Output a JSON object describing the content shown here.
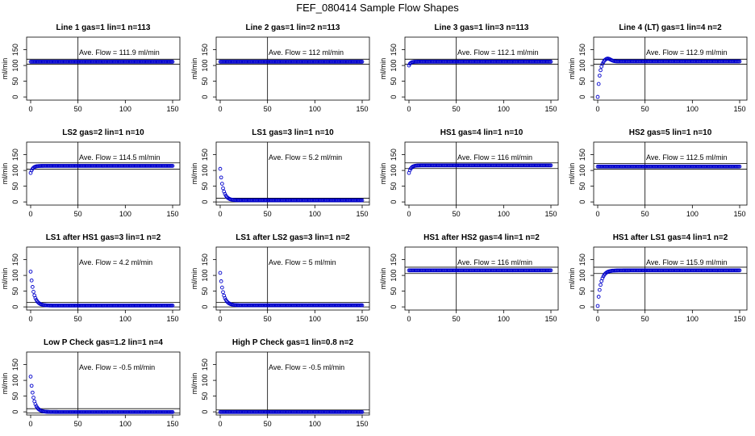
{
  "title": "FEF_080414  Sample Flow Shapes",
  "colors": {
    "points": "#0000cc",
    "lines": "#000000"
  },
  "chart_data": [
    {
      "type": "scatter",
      "title": "Line 1 gas=1 lin=1 n=113",
      "annotation": "Ave. Flow =  111.9  ml/min",
      "ylabel": "ml/min",
      "xlim": [
        0,
        150
      ],
      "ylim": [
        -10,
        190
      ],
      "x_ticks": [
        0,
        50,
        100,
        150
      ],
      "y_ticks": [
        0,
        50,
        100,
        150
      ],
      "vline": 50,
      "hlines": [
        104,
        120
      ],
      "shape": {
        "kind": "flat",
        "level": 111.9
      }
    },
    {
      "type": "scatter",
      "title": "Line 2 gas=1 lin=2 n=113",
      "annotation": "Ave. Flow =  112  ml/min",
      "ylabel": "ml/min",
      "xlim": [
        0,
        150
      ],
      "ylim": [
        -10,
        190
      ],
      "x_ticks": [
        0,
        50,
        100,
        150
      ],
      "y_ticks": [
        0,
        50,
        100,
        150
      ],
      "vline": 50,
      "hlines": [
        104,
        120
      ],
      "shape": {
        "kind": "flat",
        "level": 112
      }
    },
    {
      "type": "scatter",
      "title": "Line 3 gas=1 lin=3 n=113",
      "annotation": "Ave. Flow =  112.1  ml/min",
      "ylabel": "ml/min",
      "xlim": [
        0,
        150
      ],
      "ylim": [
        -10,
        190
      ],
      "x_ticks": [
        0,
        50,
        100,
        150
      ],
      "y_ticks": [
        0,
        50,
        100,
        150
      ],
      "vline": 50,
      "hlines": [
        104,
        120
      ],
      "shape": {
        "kind": "rise",
        "start": 100,
        "level": 112.1,
        "k": 0.6
      }
    },
    {
      "type": "scatter",
      "title": "Line 4 (LT) gas=1 lin=4 n=2",
      "annotation": "Ave. Flow =  112.9  ml/min",
      "ylabel": "ml/min",
      "xlim": [
        0,
        150
      ],
      "ylim": [
        -10,
        190
      ],
      "x_ticks": [
        0,
        50,
        100,
        150
      ],
      "y_ticks": [
        0,
        50,
        100,
        150
      ],
      "vline": 50,
      "hlines": [
        104,
        120
      ],
      "shape": {
        "kind": "overshoot",
        "level": 112.9,
        "k": 0.45
      }
    },
    {
      "type": "scatter",
      "title": "LS2 gas=2 lin=1 n=10",
      "annotation": "Ave. Flow =  114.5  ml/min",
      "ylabel": "ml/min",
      "xlim": [
        0,
        150
      ],
      "ylim": [
        -10,
        190
      ],
      "x_ticks": [
        0,
        50,
        100,
        150
      ],
      "y_ticks": [
        0,
        50,
        100,
        150
      ],
      "vline": 50,
      "hlines": [
        104,
        124
      ],
      "shape": {
        "kind": "rise",
        "start": 92,
        "level": 114.5,
        "k": 0.45
      }
    },
    {
      "type": "scatter",
      "title": "LS1 gas=3 lin=1 n=10",
      "annotation": "Ave. Flow =  5.2  ml/min",
      "ylabel": "ml/min",
      "xlim": [
        0,
        150
      ],
      "ylim": [
        -10,
        190
      ],
      "x_ticks": [
        0,
        50,
        100,
        150
      ],
      "y_ticks": [
        0,
        50,
        100,
        150
      ],
      "vline": 50,
      "hlines": [
        0,
        12
      ],
      "shape": {
        "kind": "decay",
        "start": 105,
        "level": 5.2,
        "k": 0.32
      }
    },
    {
      "type": "scatter",
      "title": "HS1 gas=4 lin=1 n=10",
      "annotation": "Ave. Flow =  116  ml/min",
      "ylabel": "ml/min",
      "xlim": [
        0,
        150
      ],
      "ylim": [
        -10,
        190
      ],
      "x_ticks": [
        0,
        50,
        100,
        150
      ],
      "y_ticks": [
        0,
        50,
        100,
        150
      ],
      "vline": 50,
      "hlines": [
        106,
        124
      ],
      "shape": {
        "kind": "rise",
        "start": 92,
        "level": 116,
        "k": 0.45
      }
    },
    {
      "type": "scatter",
      "title": "HS2 gas=5 lin=1 n=10",
      "annotation": "Ave. Flow =  112.5  ml/min",
      "ylabel": "ml/min",
      "xlim": [
        0,
        150
      ],
      "ylim": [
        -10,
        190
      ],
      "x_ticks": [
        0,
        50,
        100,
        150
      ],
      "y_ticks": [
        0,
        50,
        100,
        150
      ],
      "vline": 50,
      "hlines": [
        104,
        122
      ],
      "shape": {
        "kind": "flat",
        "level": 112.5
      }
    },
    {
      "type": "scatter",
      "title": "LS1 after HS1 gas=3 lin=1 n=2",
      "annotation": "Ave. Flow =  4.2  ml/min",
      "ylabel": "ml/min",
      "xlim": [
        0,
        150
      ],
      "ylim": [
        -10,
        190
      ],
      "x_ticks": [
        0,
        50,
        100,
        150
      ],
      "y_ticks": [
        0,
        50,
        100,
        150
      ],
      "vline": 50,
      "hlines": [
        0,
        14
      ],
      "shape": {
        "kind": "decay",
        "start": 112,
        "level": 4.2,
        "k": 0.3
      }
    },
    {
      "type": "scatter",
      "title": "LS1 after LS2 gas=3 lin=1 n=2",
      "annotation": "Ave. Flow =  5  ml/min",
      "ylabel": "ml/min",
      "xlim": [
        0,
        150
      ],
      "ylim": [
        -10,
        190
      ],
      "x_ticks": [
        0,
        50,
        100,
        150
      ],
      "y_ticks": [
        0,
        50,
        100,
        150
      ],
      "vline": 50,
      "hlines": [
        0,
        14
      ],
      "shape": {
        "kind": "decay",
        "start": 108,
        "level": 5,
        "k": 0.3
      }
    },
    {
      "type": "scatter",
      "title": "HS1 after HS2 gas=4 lin=1 n=2",
      "annotation": "Ave. Flow =  116  ml/min",
      "ylabel": "ml/min",
      "xlim": [
        0,
        150
      ],
      "ylim": [
        -10,
        190
      ],
      "x_ticks": [
        0,
        50,
        100,
        150
      ],
      "y_ticks": [
        0,
        50,
        100,
        150
      ],
      "vline": 50,
      "hlines": [
        106,
        126
      ],
      "shape": {
        "kind": "flat",
        "level": 116
      }
    },
    {
      "type": "scatter",
      "title": "HS1 after LS1 gas=4 lin=1 n=2",
      "annotation": "Ave. Flow =  115.9  ml/min",
      "ylabel": "ml/min",
      "xlim": [
        0,
        150
      ],
      "ylim": [
        -10,
        190
      ],
      "x_ticks": [
        0,
        50,
        100,
        150
      ],
      "y_ticks": [
        0,
        50,
        100,
        150
      ],
      "vline": 50,
      "hlines": [
        106,
        126
      ],
      "shape": {
        "kind": "rise",
        "start": 3,
        "level": 115.9,
        "k": 0.3
      }
    },
    {
      "type": "scatter",
      "title": "Low P Check gas=1.2 lin=1 n=4",
      "annotation": "Ave. Flow =  -0.5  ml/min",
      "ylabel": "ml/min",
      "xlim": [
        0,
        150
      ],
      "ylim": [
        -10,
        190
      ],
      "x_ticks": [
        0,
        50,
        100,
        150
      ],
      "y_ticks": [
        0,
        50,
        100,
        150
      ],
      "vline": 50,
      "hlines": [
        -4,
        10
      ],
      "shape": {
        "kind": "decay",
        "start": 112,
        "level": -0.5,
        "k": 0.3
      }
    },
    {
      "type": "scatter",
      "title": "High P Check gas=1 lin=0.8 n=2",
      "annotation": "Ave. Flow =  -0.5  ml/min",
      "ylabel": "ml/min",
      "xlim": [
        0,
        150
      ],
      "ylim": [
        -10,
        190
      ],
      "x_ticks": [
        0,
        50,
        100,
        150
      ],
      "y_ticks": [
        0,
        50,
        100,
        150
      ],
      "vline": 50,
      "hlines": [
        -4,
        6
      ],
      "shape": {
        "kind": "flat",
        "level": -0.5
      }
    }
  ]
}
